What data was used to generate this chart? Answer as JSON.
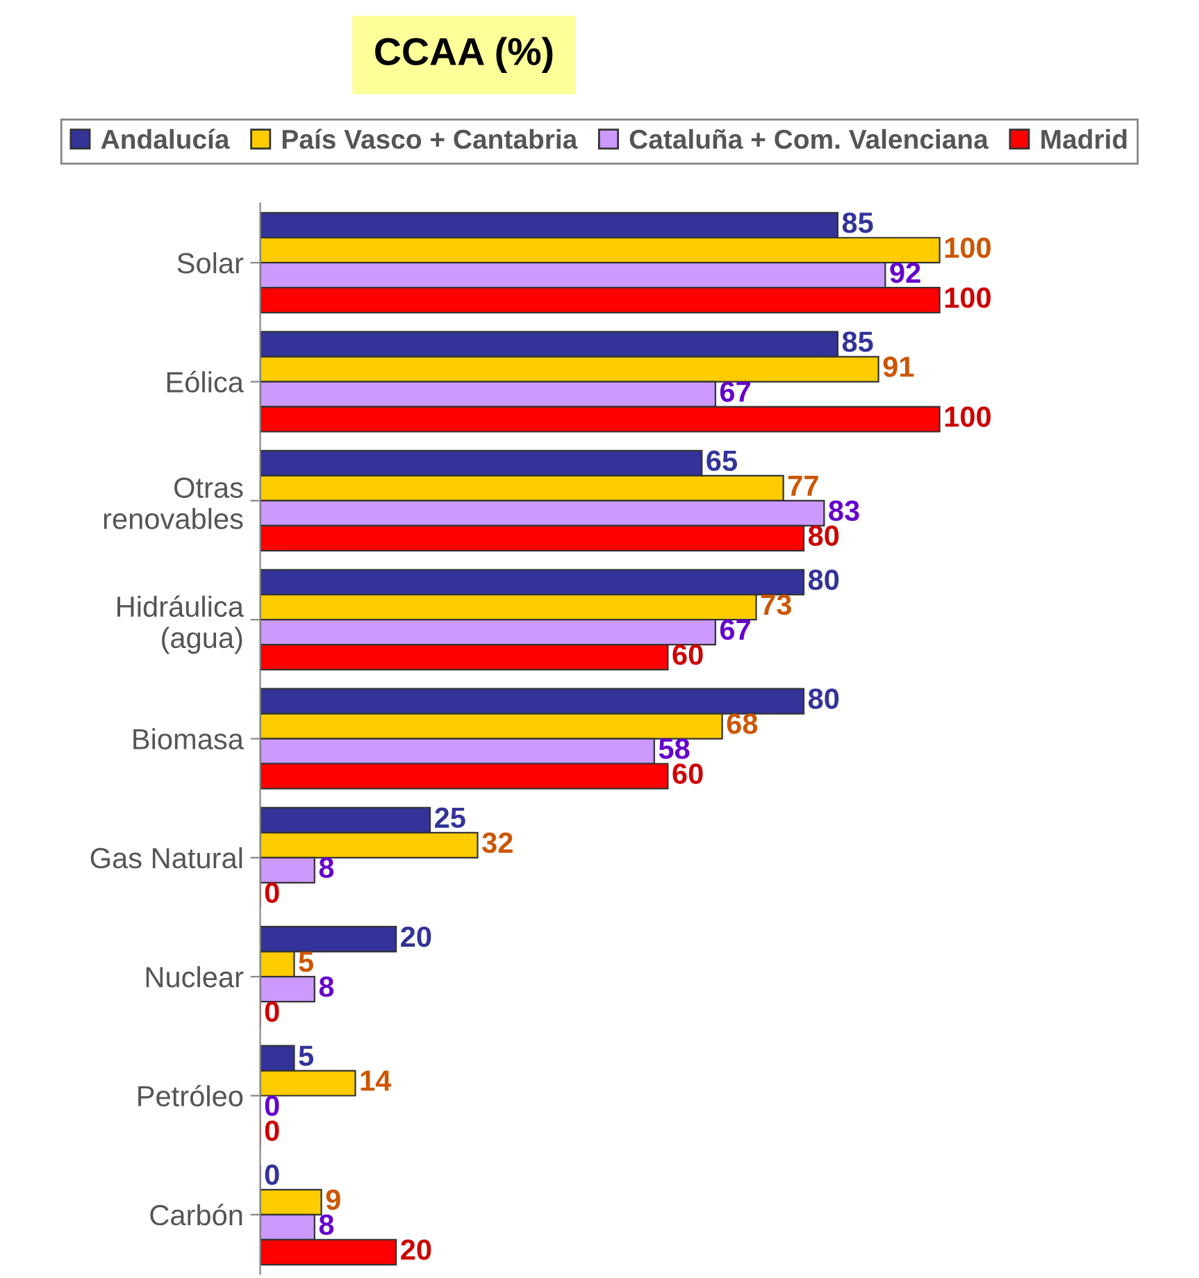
{
  "chart_data": {
    "type": "bar",
    "orientation": "horizontal",
    "title": "CCAA (%)",
    "categories": [
      "Solar",
      "Eólica",
      "Otras\nrenovables",
      "Hidráulica\n(agua)",
      "Biomasa",
      "Gas Natural",
      "Nuclear",
      "Petróleo",
      "Carbón"
    ],
    "series": [
      {
        "name": "Andalucía",
        "color": "#333399",
        "values": [
          85,
          85,
          65,
          80,
          80,
          25,
          20,
          5,
          0
        ]
      },
      {
        "name": "País Vasco + Cantabria",
        "color": "#ffcc00",
        "values": [
          100,
          91,
          77,
          73,
          68,
          32,
          5,
          14,
          9
        ]
      },
      {
        "name": "Cataluña + Com. Valenciana",
        "color": "#cc99ff",
        "values": [
          92,
          67,
          83,
          67,
          58,
          8,
          8,
          0,
          8
        ]
      },
      {
        "name": "Madrid",
        "color": "#ff0000",
        "values": [
          100,
          100,
          80,
          60,
          60,
          0,
          0,
          0,
          20
        ]
      }
    ],
    "data_labels": true,
    "legend": "top",
    "grid": false
  }
}
